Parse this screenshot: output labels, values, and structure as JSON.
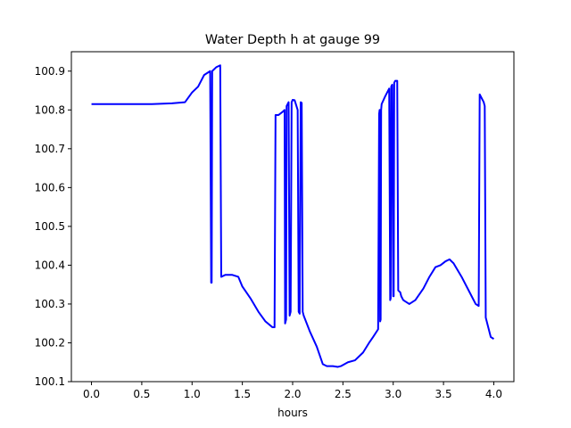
{
  "chart_data": {
    "type": "line",
    "title": "Water Depth h at gauge 99",
    "xlabel": "hours",
    "ylabel": "",
    "xlim": [
      -0.2,
      4.2
    ],
    "ylim": [
      100.1,
      100.95
    ],
    "xticks": [
      0.0,
      0.5,
      1.0,
      1.5,
      2.0,
      2.5,
      3.0,
      3.5,
      4.0
    ],
    "xtick_labels": [
      "0.0",
      "0.5",
      "1.0",
      "1.5",
      "2.0",
      "2.5",
      "3.0",
      "3.5",
      "4.0"
    ],
    "yticks": [
      100.1,
      100.2,
      100.3,
      100.4,
      100.5,
      100.6,
      100.7,
      100.8,
      100.9
    ],
    "ytick_labels": [
      "100.1",
      "100.2",
      "100.3",
      "100.4",
      "100.5",
      "100.6",
      "100.7",
      "100.8",
      "100.9"
    ],
    "grid": false,
    "legend": "none",
    "line_color": "#0000ff",
    "series": [
      {
        "x": [
          0.0,
          0.3,
          0.6,
          0.8,
          0.93,
          1.0,
          1.06,
          1.12,
          1.18,
          1.19,
          1.195,
          1.2,
          1.24,
          1.28,
          1.29,
          1.33,
          1.4,
          1.46,
          1.5,
          1.58,
          1.66,
          1.73,
          1.8,
          1.82,
          1.83,
          1.86,
          1.9,
          1.92,
          1.925,
          1.935,
          1.94,
          1.96,
          1.97,
          1.98,
          1.99,
          2.0,
          2.02,
          2.05,
          2.06,
          2.07,
          2.08,
          2.09,
          2.1,
          2.11,
          2.17,
          2.24,
          2.3,
          2.34,
          2.4,
          2.45,
          2.48,
          2.55,
          2.62,
          2.7,
          2.76,
          2.8,
          2.85,
          2.86,
          2.865,
          2.87,
          2.875,
          2.88,
          2.885,
          2.92,
          2.96,
          2.97,
          2.975,
          2.98,
          2.99,
          3.0,
          3.005,
          3.01,
          3.02,
          3.03,
          3.04,
          3.05,
          3.07,
          3.08,
          3.1,
          3.16,
          3.22,
          3.3,
          3.36,
          3.42,
          3.47,
          3.52,
          3.56,
          3.6,
          3.68,
          3.76,
          3.82,
          3.85,
          3.86,
          3.9,
          3.91,
          3.92,
          3.97,
          4.0
        ],
        "y": [
          100.815,
          100.815,
          100.815,
          100.817,
          100.82,
          100.845,
          100.86,
          100.89,
          100.9,
          100.355,
          100.355,
          100.9,
          100.91,
          100.915,
          100.37,
          100.375,
          100.375,
          100.37,
          100.345,
          100.315,
          100.28,
          100.255,
          100.24,
          100.24,
          100.787,
          100.787,
          100.795,
          100.8,
          100.25,
          100.26,
          100.81,
          100.82,
          100.27,
          100.28,
          100.82,
          100.826,
          100.825,
          100.8,
          100.28,
          100.275,
          100.82,
          100.818,
          100.28,
          100.27,
          100.23,
          100.19,
          100.145,
          100.14,
          100.14,
          100.138,
          100.14,
          100.15,
          100.155,
          100.175,
          100.2,
          100.215,
          100.235,
          100.79,
          100.8,
          100.255,
          100.26,
          100.8,
          100.815,
          100.835,
          100.855,
          100.31,
          100.315,
          100.86,
          100.865,
          100.32,
          100.32,
          100.87,
          100.875,
          100.875,
          100.875,
          100.335,
          100.33,
          100.32,
          100.31,
          100.3,
          100.31,
          100.34,
          100.37,
          100.395,
          100.4,
          100.41,
          100.415,
          100.405,
          100.37,
          100.33,
          100.3,
          100.295,
          100.84,
          100.82,
          100.81,
          100.265,
          100.215,
          100.21
        ]
      }
    ]
  }
}
